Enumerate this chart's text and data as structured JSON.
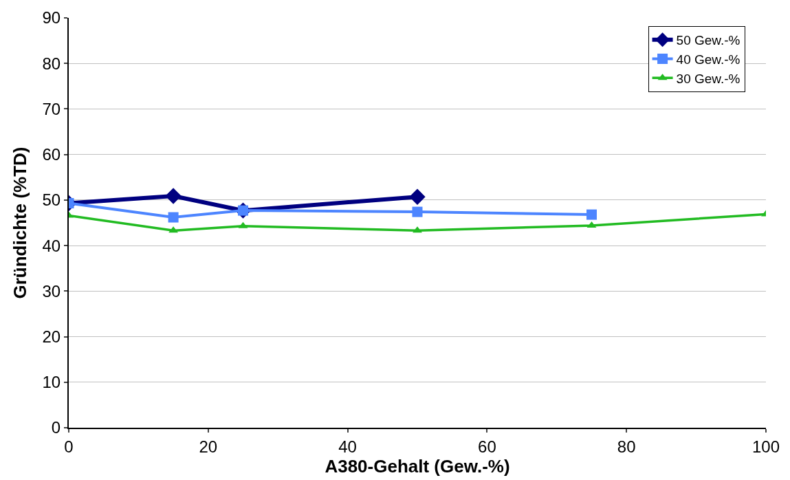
{
  "chart_data": {
    "type": "line",
    "xlabel": "A380-Gehalt (Gew.-%)",
    "ylabel": "Gründichte (%TD)",
    "xlim": [
      0,
      100
    ],
    "xticks": [
      0,
      20,
      40,
      60,
      80,
      100
    ],
    "ylim": [
      0,
      90
    ],
    "yticks": [
      0,
      10,
      20,
      30,
      40,
      50,
      60,
      70,
      80,
      90
    ],
    "grid": "y",
    "legend": "top right",
    "line_style": "solid",
    "series": [
      {
        "name": "50 Gew.-%",
        "color": "#000080",
        "marker": "diamond",
        "x": [
          0,
          15,
          25,
          50
        ],
        "values": [
          49.3,
          50.9,
          47.7,
          50.7
        ]
      },
      {
        "name": "40 Gew.-%",
        "color": "#4d85ff",
        "marker": "square",
        "x": [
          0,
          15,
          25,
          50,
          75
        ],
        "values": [
          49.3,
          46.2,
          47.7,
          47.4,
          46.8
        ]
      },
      {
        "name": "30 Gew.-%",
        "color": "#22bb22",
        "marker": "triangle",
        "x": [
          0,
          15,
          25,
          50,
          75,
          100
        ],
        "values": [
          46.6,
          43.3,
          44.3,
          43.3,
          44.4,
          46.9
        ]
      }
    ]
  }
}
